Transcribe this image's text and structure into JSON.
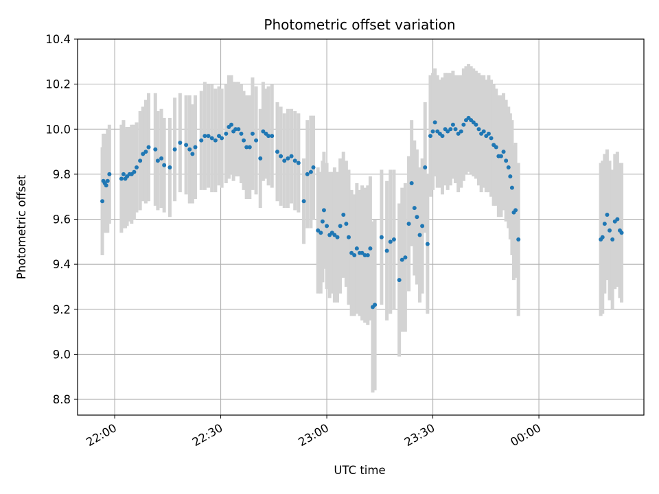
{
  "chart_data": {
    "type": "scatter",
    "title": "Photometric offset variation",
    "xlabel": "UTC time",
    "ylabel": "Photometric offset",
    "ylim": [
      8.73,
      10.4
    ],
    "xlim_minutes_from_22_00": [
      -10.5,
      149.7
    ],
    "xticks": [
      {
        "label": "22:00",
        "minute": 0
      },
      {
        "label": "22:30",
        "minute": 30
      },
      {
        "label": "23:00",
        "minute": 60
      },
      {
        "label": "23:30",
        "minute": 90
      },
      {
        "label": "00:00",
        "minute": 120
      }
    ],
    "yticks": [
      8.8,
      9.0,
      9.2,
      9.4,
      9.6,
      9.8,
      10.0,
      10.2,
      10.4
    ],
    "grid": true,
    "colors": {
      "points": "#1f77b4",
      "errorbars": "#d3d3d3",
      "grid": "#b0b0b0"
    },
    "series": [
      {
        "points": [
          [
            -3.5,
            9.68,
            0.24
          ],
          [
            -3.2,
            9.77,
            0.21
          ],
          [
            -2.8,
            9.76,
            0.22
          ],
          [
            -2.4,
            9.75,
            0.21
          ],
          [
            -2.0,
            9.77,
            0.23
          ],
          [
            -1.5,
            9.8,
            0.22
          ],
          [
            1.9,
            9.78,
            0.24
          ],
          [
            2.5,
            9.8,
            0.24
          ],
          [
            3.0,
            9.78,
            0.22
          ],
          [
            3.5,
            9.79,
            0.22
          ],
          [
            4.2,
            9.8,
            0.21
          ],
          [
            4.8,
            9.8,
            0.22
          ],
          [
            5.5,
            9.81,
            0.21
          ],
          [
            6.2,
            9.83,
            0.2
          ],
          [
            7.2,
            9.86,
            0.22
          ],
          [
            8.0,
            9.89,
            0.21
          ],
          [
            8.8,
            9.9,
            0.23
          ],
          [
            9.6,
            9.92,
            0.24
          ],
          [
            11.5,
            9.91,
            0.25
          ],
          [
            12.2,
            9.86,
            0.22
          ],
          [
            13.2,
            9.87,
            0.22
          ],
          [
            14.0,
            9.84,
            0.21
          ],
          [
            15.6,
            9.83,
            0.22
          ],
          [
            17.0,
            9.91,
            0.23
          ],
          [
            18.5,
            9.94,
            0.22
          ],
          [
            20.2,
            9.93,
            0.22
          ],
          [
            21.2,
            9.91,
            0.24
          ],
          [
            22.0,
            9.89,
            0.22
          ],
          [
            22.8,
            9.92,
            0.23
          ],
          [
            24.5,
            9.95,
            0.22
          ],
          [
            25.5,
            9.97,
            0.24
          ],
          [
            26.5,
            9.97,
            0.23
          ],
          [
            27.5,
            9.96,
            0.24
          ],
          [
            28.5,
            9.95,
            0.23
          ],
          [
            29.5,
            9.97,
            0.22
          ],
          [
            30.3,
            9.96,
            0.22
          ],
          [
            31.5,
            9.98,
            0.22
          ],
          [
            32.3,
            10.01,
            0.23
          ],
          [
            33.0,
            10.02,
            0.22
          ],
          [
            33.6,
            9.99,
            0.22
          ],
          [
            34.2,
            10.0,
            0.21
          ],
          [
            35.0,
            10.0,
            0.21
          ],
          [
            35.8,
            9.98,
            0.22
          ],
          [
            36.5,
            9.95,
            0.22
          ],
          [
            37.3,
            9.92,
            0.23
          ],
          [
            38.2,
            9.92,
            0.23
          ],
          [
            39.0,
            9.98,
            0.25
          ],
          [
            40.0,
            9.95,
            0.24
          ],
          [
            41.2,
            9.87,
            0.22
          ],
          [
            42.0,
            9.99,
            0.22
          ],
          [
            42.8,
            9.98,
            0.2
          ],
          [
            43.5,
            9.97,
            0.22
          ],
          [
            44.5,
            9.97,
            0.23
          ],
          [
            46.0,
            9.9,
            0.22
          ],
          [
            47.0,
            9.88,
            0.22
          ],
          [
            48.0,
            9.86,
            0.21
          ],
          [
            49.0,
            9.87,
            0.22
          ],
          [
            50.0,
            9.88,
            0.21
          ],
          [
            51.0,
            9.86,
            0.22
          ],
          [
            52.0,
            9.85,
            0.22
          ],
          [
            53.5,
            9.68,
            0.19
          ],
          [
            54.5,
            9.8,
            0.24
          ],
          [
            55.5,
            9.81,
            0.25
          ],
          [
            56.2,
            9.83,
            0.23
          ],
          [
            57.5,
            9.55,
            0.28
          ],
          [
            58.3,
            9.54,
            0.27
          ],
          [
            58.8,
            9.59,
            0.27
          ],
          [
            59.2,
            9.64,
            0.26
          ],
          [
            60.0,
            9.57,
            0.28
          ],
          [
            60.8,
            9.53,
            0.28
          ],
          [
            61.5,
            9.54,
            0.27
          ],
          [
            62.2,
            9.53,
            0.3
          ],
          [
            63.0,
            9.52,
            0.29
          ],
          [
            63.8,
            9.57,
            0.3
          ],
          [
            64.7,
            9.62,
            0.28
          ],
          [
            65.5,
            9.58,
            0.28
          ],
          [
            66.2,
            9.52,
            0.3
          ],
          [
            67.0,
            9.45,
            0.28
          ],
          [
            67.8,
            9.44,
            0.27
          ],
          [
            68.5,
            9.47,
            0.29
          ],
          [
            69.3,
            9.45,
            0.28
          ],
          [
            70.0,
            9.45,
            0.3
          ],
          [
            70.8,
            9.44,
            0.3
          ],
          [
            71.6,
            9.44,
            0.31
          ],
          [
            72.3,
            9.47,
            0.32
          ],
          [
            73.0,
            9.21,
            0.38
          ],
          [
            73.6,
            9.22,
            0.38
          ],
          [
            75.5,
            9.52,
            0.3
          ],
          [
            77.0,
            9.46,
            0.31
          ],
          [
            78.0,
            9.5,
            0.32
          ],
          [
            79.0,
            9.51,
            0.31
          ],
          [
            80.5,
            9.33,
            0.34
          ],
          [
            81.3,
            9.42,
            0.32
          ],
          [
            82.2,
            9.43,
            0.33
          ],
          [
            83.2,
            9.58,
            0.3
          ],
          [
            84.0,
            9.76,
            0.28
          ],
          [
            84.8,
            9.65,
            0.3
          ],
          [
            85.5,
            9.61,
            0.3
          ],
          [
            86.3,
            9.53,
            0.3
          ],
          [
            87.0,
            9.57,
            0.3
          ],
          [
            87.8,
            9.83,
            0.29
          ],
          [
            88.5,
            9.49,
            0.31
          ],
          [
            89.3,
            9.97,
            0.27
          ],
          [
            90.0,
            9.99,
            0.26
          ],
          [
            90.6,
            10.03,
            0.24
          ],
          [
            91.3,
            9.99,
            0.25
          ],
          [
            92.0,
            9.98,
            0.24
          ],
          [
            92.7,
            9.97,
            0.26
          ],
          [
            93.5,
            10.0,
            0.25
          ],
          [
            94.2,
            9.99,
            0.26
          ],
          [
            95.0,
            10.0,
            0.25
          ],
          [
            95.7,
            10.02,
            0.24
          ],
          [
            96.4,
            10.0,
            0.24
          ],
          [
            97.2,
            9.98,
            0.26
          ],
          [
            98.0,
            9.99,
            0.25
          ],
          [
            98.7,
            10.02,
            0.25
          ],
          [
            99.4,
            10.04,
            0.24
          ],
          [
            100.1,
            10.05,
            0.24
          ],
          [
            100.8,
            10.04,
            0.24
          ],
          [
            101.5,
            10.03,
            0.24
          ],
          [
            102.2,
            10.02,
            0.24
          ],
          [
            103.0,
            10.0,
            0.25
          ],
          [
            103.7,
            9.98,
            0.26
          ],
          [
            104.4,
            9.99,
            0.25
          ],
          [
            105.1,
            9.97,
            0.25
          ],
          [
            105.8,
            9.98,
            0.26
          ],
          [
            106.5,
            9.96,
            0.26
          ],
          [
            107.2,
            9.93,
            0.27
          ],
          [
            107.9,
            9.92,
            0.26
          ],
          [
            108.6,
            9.88,
            0.27
          ],
          [
            109.3,
            9.88,
            0.27
          ],
          [
            110.0,
            9.9,
            0.26
          ],
          [
            110.7,
            9.86,
            0.27
          ],
          [
            111.4,
            9.83,
            0.27
          ],
          [
            111.9,
            9.79,
            0.28
          ],
          [
            112.4,
            9.74,
            0.3
          ],
          [
            112.9,
            9.63,
            0.3
          ],
          [
            113.4,
            9.64,
            0.3
          ],
          [
            114.2,
            9.51,
            0.34
          ],
          [
            137.5,
            9.51,
            0.34
          ],
          [
            138.0,
            9.52,
            0.34
          ],
          [
            138.6,
            9.58,
            0.31
          ],
          [
            139.3,
            9.62,
            0.29
          ],
          [
            140.0,
            9.55,
            0.31
          ],
          [
            140.8,
            9.51,
            0.31
          ],
          [
            141.5,
            9.59,
            0.3
          ],
          [
            142.2,
            9.6,
            0.3
          ],
          [
            142.9,
            9.55,
            0.3
          ],
          [
            143.4,
            9.54,
            0.31
          ]
        ]
      }
    ]
  }
}
